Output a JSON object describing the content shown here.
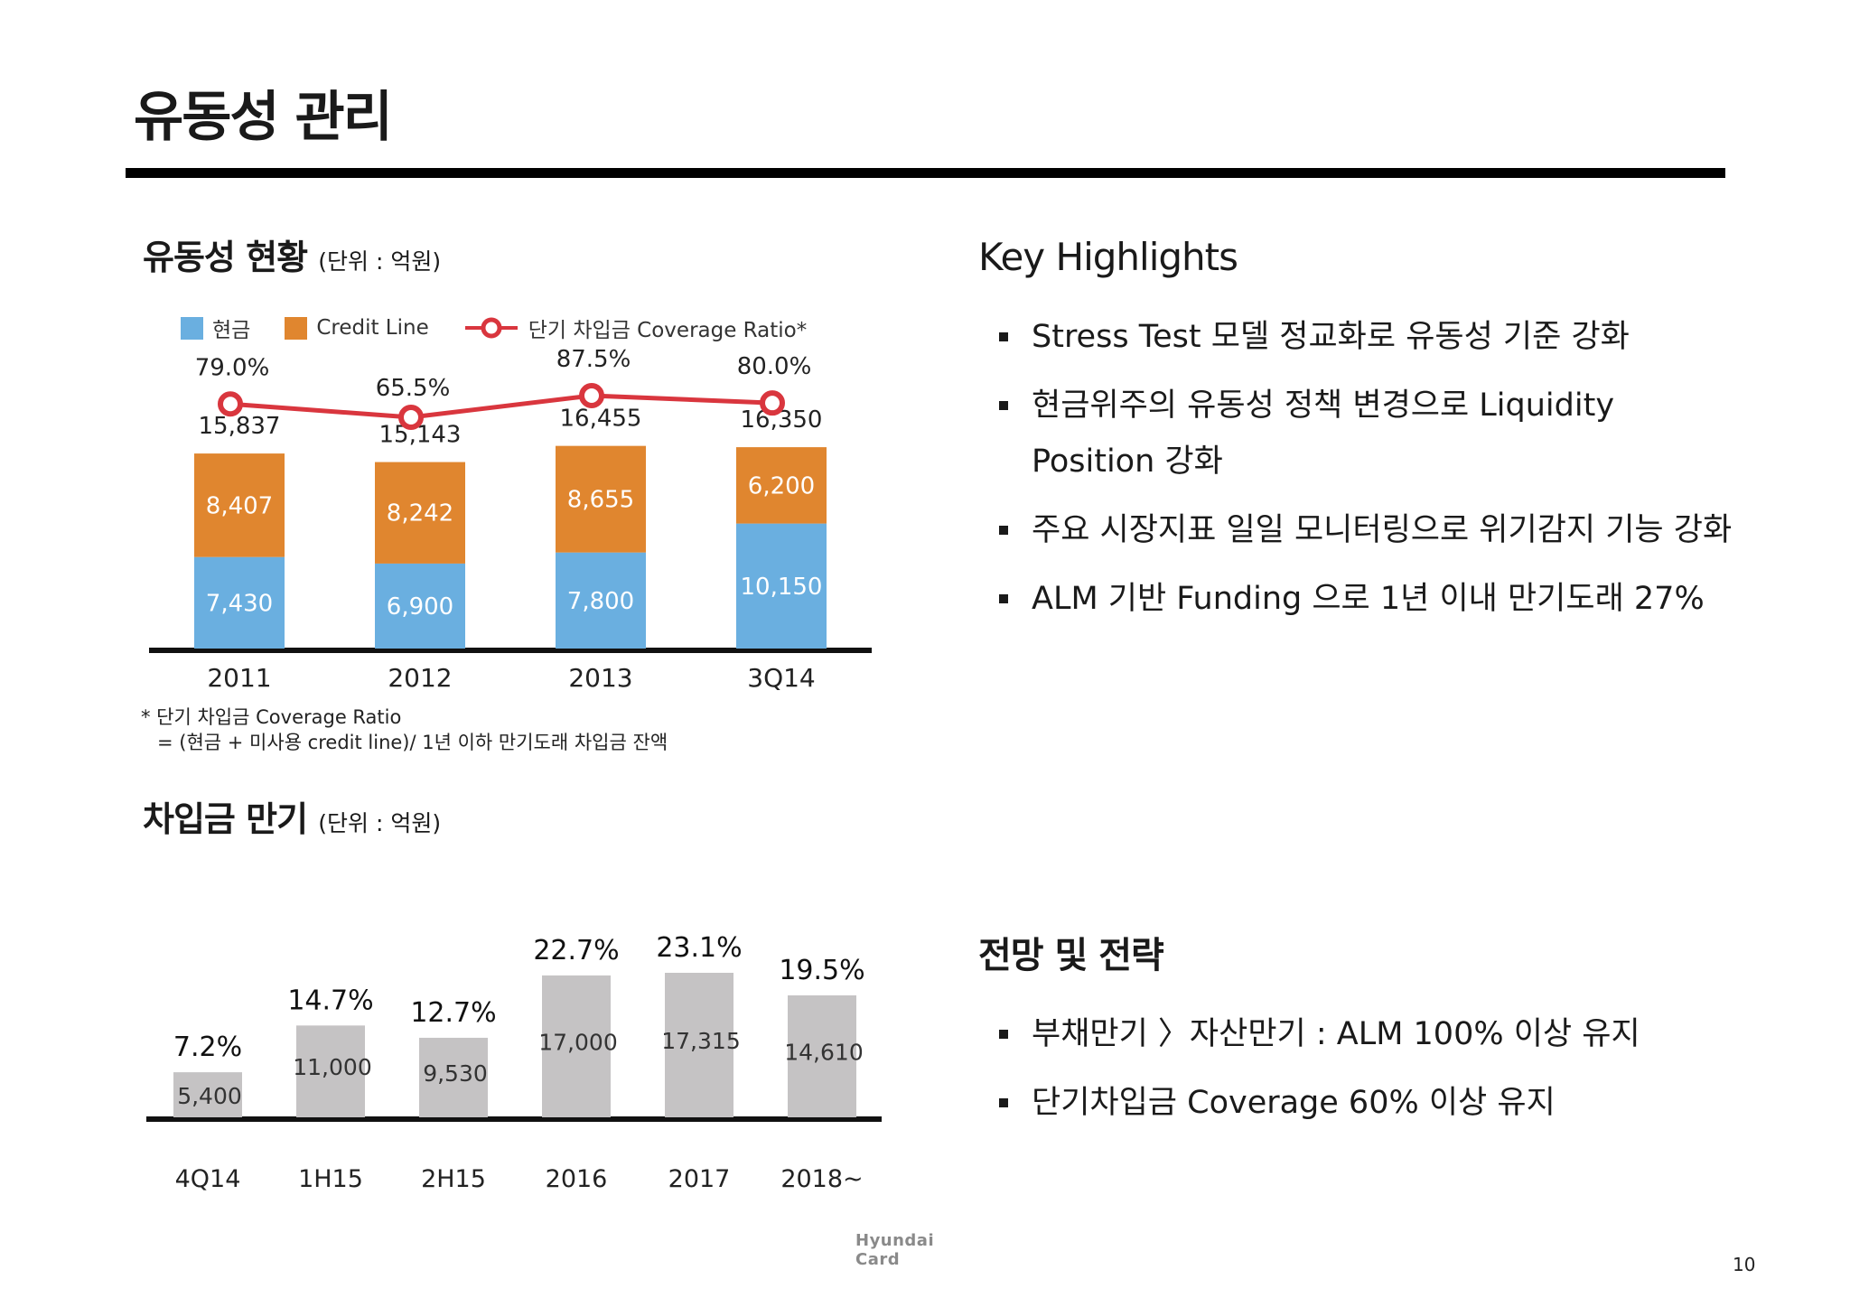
{
  "page_title": "유동성 관리",
  "liquidity": {
    "title": "유동성 현황",
    "unit": "(단위 : 억원)",
    "legend": {
      "cash": "현금",
      "credit": "Credit Line",
      "ratio": "단기 차입금 Coverage Ratio*"
    },
    "footnote": [
      "* 단기 차입금 Coverage Ratio",
      "= (현금 + 미사용 credit line)/ 1년 이하 만기도래 차입금 잔액"
    ]
  },
  "maturity": {
    "title": "차입금 만기",
    "unit": "(단위 : 억원)"
  },
  "highlights": {
    "title": "Key Highlights",
    "items": [
      "Stress Test 모델 정교화로 유동성 기준 강화",
      "현금위주의 유동성 정책 변경으로 Liquidity Position 강화",
      "주요 시장지표 일일 모니터링으로 위기감지 기능 강화",
      "ALM 기반 Funding 으로 1년 이내 만기도래 27%"
    ]
  },
  "outlook": {
    "title": "전망 및 전략",
    "items": [
      "부채만기 〉자산만기 : ALM 100% 이상 유지",
      "단기차입금 Coverage 60% 이상 유지"
    ]
  },
  "logo_text": "Hyundai Card",
  "page_number": "10",
  "colors": {
    "cash": "#6aafe0",
    "credit": "#e0862f",
    "ratio": "#d9363e",
    "maturity_bar": "#c5c3c4",
    "axis": "#111111"
  },
  "chart_data": [
    {
      "type": "bar",
      "stacked": true,
      "categories": [
        "2011",
        "2012",
        "2013",
        "3Q14"
      ],
      "series": [
        {
          "name": "현금",
          "values": [
            7430,
            6900,
            7800,
            10150
          ],
          "labels": [
            "7,430",
            "6,900",
            "7,800",
            "10,150"
          ]
        },
        {
          "name": "Credit Line",
          "values": [
            8407,
            8242,
            8655,
            6200
          ],
          "labels": [
            "8,407",
            "8,242",
            "8,655",
            "6,200"
          ]
        }
      ],
      "totals": [
        15837,
        15143,
        16455,
        16350
      ],
      "total_labels": [
        "15,837",
        "15,143",
        "16,455",
        "16,350"
      ],
      "line": {
        "name": "단기 차입금 Coverage Ratio*",
        "values": [
          79.0,
          65.5,
          87.5,
          80.0
        ],
        "labels": [
          "79.0%",
          "65.5%",
          "87.5%",
          "80.0%"
        ]
      },
      "ylim": [
        0,
        18000
      ]
    },
    {
      "type": "bar",
      "categories": [
        "4Q14",
        "1H15",
        "2H15",
        "2016",
        "2017",
        "2018~"
      ],
      "values": [
        5400,
        11000,
        9530,
        17000,
        17315,
        14610
      ],
      "value_labels": [
        "5,400",
        "11,000",
        "9,530",
        "17,000",
        "17,315",
        "14,610"
      ],
      "share_labels": [
        "7.2%",
        "14.7%",
        "12.7%",
        "22.7%",
        "23.1%",
        "19.5%"
      ],
      "ylim": [
        0,
        18000
      ]
    }
  ]
}
